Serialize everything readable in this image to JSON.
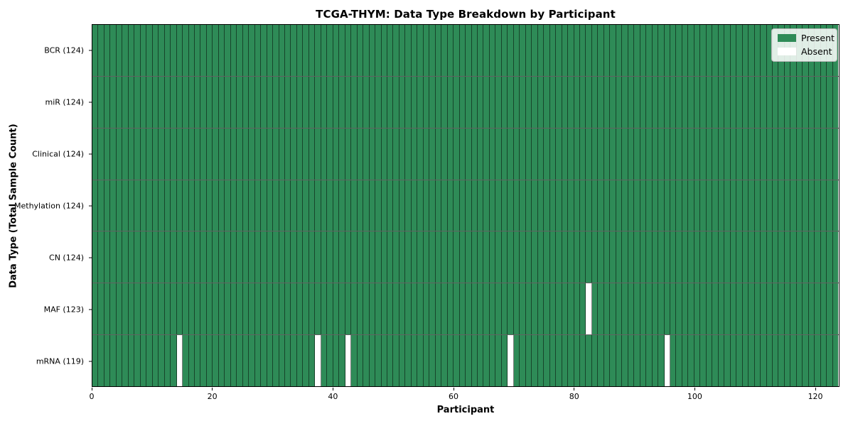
{
  "chart_data": {
    "type": "heatmap",
    "title": "TCGA-THYM: Data Type Breakdown by Participant",
    "xlabel": "Participant",
    "ylabel": "Data Type (Total Sample Count)",
    "n_participants": 124,
    "x_ticks": [
      0,
      20,
      40,
      60,
      80,
      100,
      120
    ],
    "xlim": [
      0,
      124
    ],
    "grid": "cell-borders",
    "legend_position": "upper right",
    "rows": [
      {
        "name": "BCR",
        "label": "BCR (124)",
        "total_samples": 124,
        "absent_participants": []
      },
      {
        "name": "miR",
        "label": "miR (124)",
        "total_samples": 124,
        "absent_participants": []
      },
      {
        "name": "Clinical",
        "label": "Clinical (124)",
        "total_samples": 124,
        "absent_participants": []
      },
      {
        "name": "Methylation",
        "label": "Methylation (124)",
        "total_samples": 124,
        "absent_participants": []
      },
      {
        "name": "CN",
        "label": "CN (124)",
        "total_samples": 124,
        "absent_participants": []
      },
      {
        "name": "MAF",
        "label": "MAF (123)",
        "total_samples": 123,
        "absent_participants": [
          82
        ]
      },
      {
        "name": "mRNA",
        "label": "mRNA (119)",
        "total_samples": 119,
        "absent_participants": [
          14,
          37,
          42,
          69,
          95
        ]
      }
    ],
    "legend": [
      {
        "label": "Present",
        "color": "#2e8b57"
      },
      {
        "label": "Absent",
        "color": "#ffffff"
      }
    ],
    "colors": {
      "present": "#2e8b57",
      "absent": "#ffffff",
      "cell_border": "rgba(0,0,0,0.5)",
      "axis_border": "#000000",
      "legend_border": "#b9b9b9"
    }
  }
}
